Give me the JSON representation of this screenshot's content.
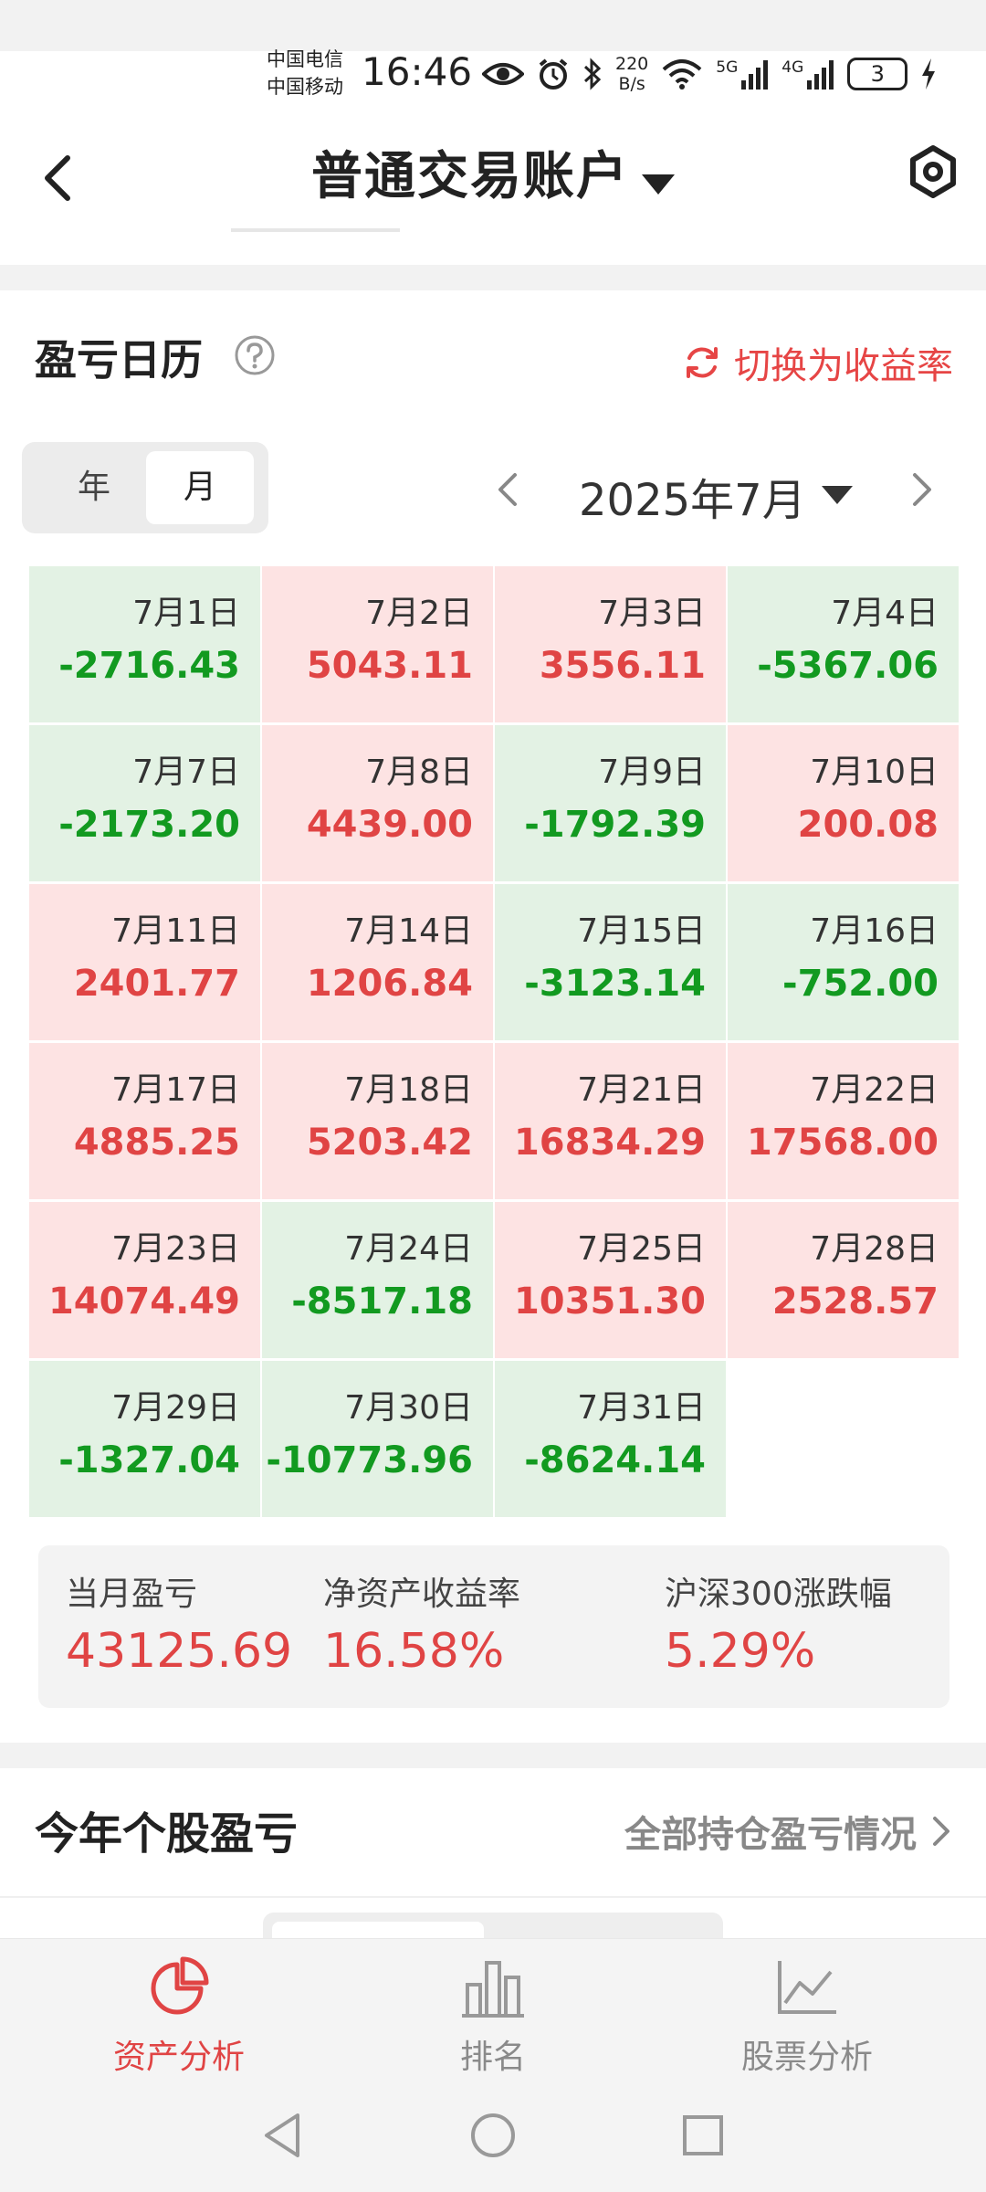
{
  "status_bar": {
    "carrier_1": "中国电信",
    "carrier_2": "中国移动",
    "time": "16:46",
    "net_speed_value": "220",
    "net_speed_unit": "B/s",
    "signal_1": "5G",
    "signal_2": "4G",
    "battery": "3"
  },
  "header": {
    "title": "普通交易账户"
  },
  "calendar": {
    "title": "盈亏日历",
    "switch_label": "切换为收益率",
    "tab_year": "年",
    "tab_month": "月",
    "selected_tab": "月",
    "month_label": "2025年7月",
    "days": [
      {
        "date": "7月1日",
        "value": "-2716.43",
        "sign": "neg"
      },
      {
        "date": "7月2日",
        "value": "5043.11",
        "sign": "pos"
      },
      {
        "date": "7月3日",
        "value": "3556.11",
        "sign": "pos"
      },
      {
        "date": "7月4日",
        "value": "-5367.06",
        "sign": "neg"
      },
      {
        "date": "7月7日",
        "value": "-2173.20",
        "sign": "neg"
      },
      {
        "date": "7月8日",
        "value": "4439.00",
        "sign": "pos"
      },
      {
        "date": "7月9日",
        "value": "-1792.39",
        "sign": "neg"
      },
      {
        "date": "7月10日",
        "value": "200.08",
        "sign": "pos"
      },
      {
        "date": "7月11日",
        "value": "2401.77",
        "sign": "pos"
      },
      {
        "date": "7月14日",
        "value": "1206.84",
        "sign": "pos"
      },
      {
        "date": "7月15日",
        "value": "-3123.14",
        "sign": "neg"
      },
      {
        "date": "7月16日",
        "value": "-752.00",
        "sign": "neg"
      },
      {
        "date": "7月17日",
        "value": "4885.25",
        "sign": "pos"
      },
      {
        "date": "7月18日",
        "value": "5203.42",
        "sign": "pos"
      },
      {
        "date": "7月21日",
        "value": "16834.29",
        "sign": "pos"
      },
      {
        "date": "7月22日",
        "value": "17568.00",
        "sign": "pos"
      },
      {
        "date": "7月23日",
        "value": "14074.49",
        "sign": "pos"
      },
      {
        "date": "7月24日",
        "value": "-8517.18",
        "sign": "neg"
      },
      {
        "date": "7月25日",
        "value": "10351.30",
        "sign": "pos"
      },
      {
        "date": "7月28日",
        "value": "2528.57",
        "sign": "pos"
      },
      {
        "date": "7月29日",
        "value": "-1327.04",
        "sign": "neg"
      },
      {
        "date": "7月30日",
        "value": "-10773.96",
        "sign": "neg"
      },
      {
        "date": "7月31日",
        "value": "-8624.14",
        "sign": "neg"
      }
    ]
  },
  "summary": {
    "monthly_pnl_label": "当月盈亏",
    "monthly_pnl_value": "43125.69",
    "roe_label": "净资产收益率",
    "roe_value": "16.58%",
    "index_label": "沪深300涨跌幅",
    "index_value": "5.29%"
  },
  "stock_section": {
    "title": "今年个股盈亏",
    "link_label": "全部持仓盈亏情况"
  },
  "tabbar": {
    "items": [
      {
        "label": "资产分析",
        "icon": "pie-chart-icon",
        "active": true
      },
      {
        "label": "排名",
        "icon": "bar-chart-icon",
        "active": false
      },
      {
        "label": "股票分析",
        "icon": "line-chart-icon",
        "active": false
      }
    ]
  },
  "colors": {
    "positive": "#e04444",
    "negative": "#129a20",
    "positive_bg": "#fde3e3",
    "negative_bg": "#e3f2e4"
  }
}
